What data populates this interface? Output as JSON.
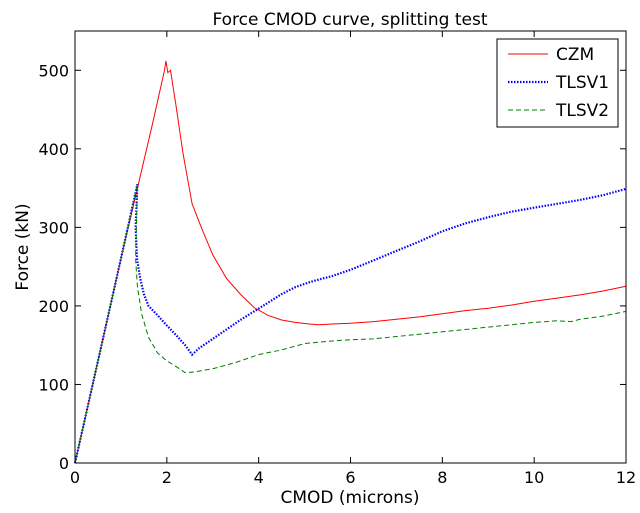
{
  "chart_data": {
    "type": "line",
    "title": "Force CMOD curve, splitting test",
    "xlabel": "CMOD (microns)",
    "ylabel": "Force (kN)",
    "xlim": [
      0,
      12
    ],
    "ylim": [
      0,
      550
    ],
    "xticks": [
      0,
      2,
      4,
      6,
      8,
      10,
      12
    ],
    "yticks": [
      0,
      100,
      200,
      300,
      400,
      500
    ],
    "grid": false,
    "legend_position": "top-right",
    "series": [
      {
        "name": "CZM",
        "color": "#ff0000",
        "dash": "solid",
        "points": [
          [
            0,
            0
          ],
          [
            0.5,
            130
          ],
          [
            1.0,
            260
          ],
          [
            1.4,
            360
          ],
          [
            1.7,
            435
          ],
          [
            1.95,
            500
          ],
          [
            1.98,
            512
          ],
          [
            2.02,
            497
          ],
          [
            2.08,
            500
          ],
          [
            2.2,
            455
          ],
          [
            2.35,
            395
          ],
          [
            2.55,
            330
          ],
          [
            2.75,
            300
          ],
          [
            3.0,
            265
          ],
          [
            3.3,
            235
          ],
          [
            3.6,
            215
          ],
          [
            3.9,
            198
          ],
          [
            4.2,
            188
          ],
          [
            4.5,
            182
          ],
          [
            4.8,
            179
          ],
          [
            5.1,
            177
          ],
          [
            5.3,
            176
          ],
          [
            5.6,
            177
          ],
          [
            6.0,
            178
          ],
          [
            6.5,
            180
          ],
          [
            7.0,
            183
          ],
          [
            7.5,
            186
          ],
          [
            8.0,
            190
          ],
          [
            8.5,
            194
          ],
          [
            9.0,
            197
          ],
          [
            9.5,
            201
          ],
          [
            10.0,
            206
          ],
          [
            10.5,
            210
          ],
          [
            11.0,
            214
          ],
          [
            11.5,
            219
          ],
          [
            12.0,
            225
          ]
        ]
      },
      {
        "name": "TLSV1",
        "color": "#0000ff",
        "dash": "dotted",
        "points": [
          [
            0,
            0
          ],
          [
            0.5,
            130
          ],
          [
            1.0,
            260
          ],
          [
            1.36,
            355
          ],
          [
            1.32,
            300
          ],
          [
            1.35,
            260
          ],
          [
            1.42,
            235
          ],
          [
            1.5,
            215
          ],
          [
            1.6,
            200
          ],
          [
            1.8,
            188
          ],
          [
            2.0,
            175
          ],
          [
            2.2,
            163
          ],
          [
            2.4,
            150
          ],
          [
            2.55,
            138
          ],
          [
            2.7,
            146
          ],
          [
            3.0,
            158
          ],
          [
            3.3,
            170
          ],
          [
            3.6,
            182
          ],
          [
            3.9,
            193
          ],
          [
            4.2,
            204
          ],
          [
            4.5,
            215
          ],
          [
            4.8,
            224
          ],
          [
            5.1,
            230
          ],
          [
            5.4,
            235
          ],
          [
            5.6,
            238
          ],
          [
            6.0,
            246
          ],
          [
            6.5,
            258
          ],
          [
            7.0,
            270
          ],
          [
            7.5,
            282
          ],
          [
            8.0,
            295
          ],
          [
            8.5,
            305
          ],
          [
            9.0,
            313
          ],
          [
            9.5,
            320
          ],
          [
            10.0,
            325
          ],
          [
            10.5,
            330
          ],
          [
            11.0,
            335
          ],
          [
            11.5,
            341
          ],
          [
            12.0,
            349
          ]
        ]
      },
      {
        "name": "TLSV2",
        "color": "#008000",
        "dash": "dashed",
        "points": [
          [
            0,
            0
          ],
          [
            0.5,
            130
          ],
          [
            1.0,
            260
          ],
          [
            1.36,
            355
          ],
          [
            1.32,
            260
          ],
          [
            1.36,
            225
          ],
          [
            1.45,
            190
          ],
          [
            1.6,
            160
          ],
          [
            1.8,
            140
          ],
          [
            2.0,
            130
          ],
          [
            2.2,
            123
          ],
          [
            2.4,
            115
          ],
          [
            2.6,
            116
          ],
          [
            3.0,
            120
          ],
          [
            3.5,
            128
          ],
          [
            4.0,
            138
          ],
          [
            4.5,
            144
          ],
          [
            5.0,
            152
          ],
          [
            5.5,
            155
          ],
          [
            6.0,
            157
          ],
          [
            6.5,
            158
          ],
          [
            7.0,
            161
          ],
          [
            7.5,
            164
          ],
          [
            8.0,
            167
          ],
          [
            8.5,
            170
          ],
          [
            9.0,
            173
          ],
          [
            9.5,
            176
          ],
          [
            10.0,
            179
          ],
          [
            10.5,
            181
          ],
          [
            10.8,
            180
          ],
          [
            11.0,
            183
          ],
          [
            11.5,
            187
          ],
          [
            12.0,
            193
          ]
        ]
      }
    ]
  }
}
